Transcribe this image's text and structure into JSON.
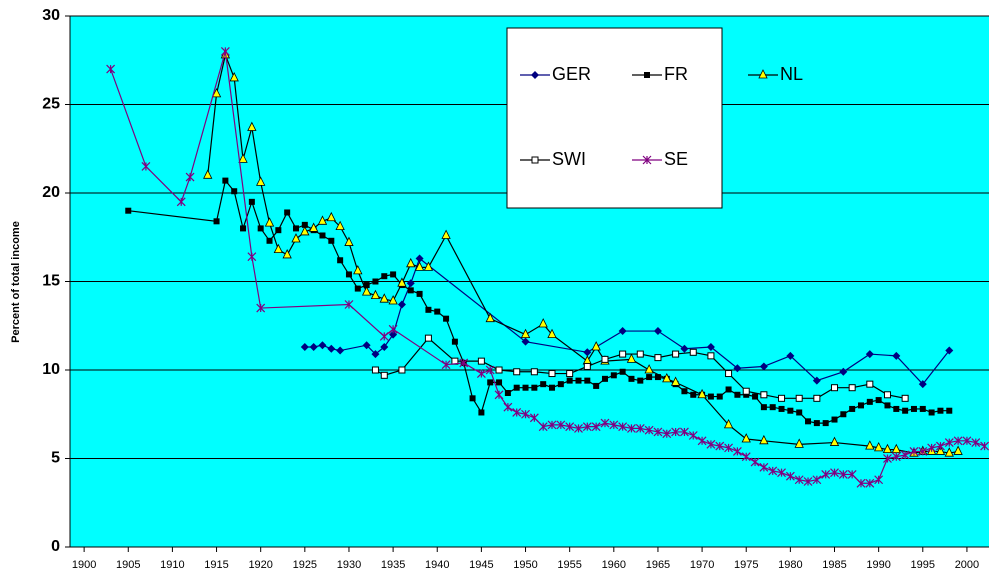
{
  "chart_data": {
    "type": "line",
    "y_label": "Percent of total income",
    "xlim": [
      1898.4,
      2002.5
    ],
    "ylim": [
      0,
      30
    ],
    "xticks": [
      1900,
      1905,
      1910,
      1915,
      1920,
      1925,
      1930,
      1935,
      1940,
      1945,
      1950,
      1955,
      1960,
      1965,
      1970,
      1975,
      1980,
      1985,
      1990,
      1995,
      2000
    ],
    "yticks": [
      0,
      5,
      10,
      15,
      20,
      25,
      30
    ],
    "grid": true,
    "background": "#00ffff",
    "series": [
      {
        "name": "GER",
        "color": "#000080",
        "marker": "diamond",
        "x": [
          1925,
          1926,
          1927,
          1928,
          1929,
          1932,
          1933,
          1934,
          1935,
          1936,
          1937,
          1938,
          1950,
          1957,
          1961,
          1965,
          1968,
          1971,
          1974,
          1977,
          1980,
          1983,
          1986,
          1989,
          1992,
          1995,
          1998
        ],
        "values": [
          11.3,
          11.3,
          11.4,
          11.2,
          11.1,
          11.4,
          10.9,
          11.3,
          12.0,
          13.7,
          14.9,
          16.3,
          11.6,
          11.0,
          12.2,
          12.2,
          11.2,
          11.3,
          10.1,
          10.2,
          10.8,
          9.4,
          9.9,
          10.9,
          10.8,
          9.2,
          11.1
        ]
      },
      {
        "name": "FR",
        "color": "#000000",
        "marker": "square",
        "x": [
          1905,
          1915,
          1916,
          1917,
          1918,
          1919,
          1920,
          1921,
          1922,
          1923,
          1924,
          1925,
          1926,
          1927,
          1928,
          1929,
          1930,
          1931,
          1932,
          1933,
          1934,
          1935,
          1936,
          1937,
          1938,
          1939,
          1940,
          1941,
          1942,
          1943,
          1944,
          1945,
          1946,
          1947,
          1948,
          1949,
          1950,
          1951,
          1952,
          1953,
          1954,
          1955,
          1956,
          1957,
          1958,
          1959,
          1960,
          1961,
          1962,
          1963,
          1964,
          1965,
          1966,
          1967,
          1968,
          1969,
          1970,
          1971,
          1972,
          1973,
          1974,
          1975,
          1976,
          1977,
          1978,
          1979,
          1980,
          1981,
          1982,
          1983,
          1984,
          1985,
          1986,
          1987,
          1988,
          1989,
          1990,
          1991,
          1992,
          1993,
          1994,
          1995,
          1996,
          1997,
          1998
        ],
        "values": [
          19.0,
          18.4,
          20.7,
          20.1,
          18.0,
          19.5,
          18.0,
          17.3,
          17.9,
          18.9,
          18.0,
          18.2,
          17.9,
          17.6,
          17.3,
          16.2,
          15.4,
          14.6,
          14.8,
          15.0,
          15.3,
          15.4,
          14.8,
          14.5,
          14.3,
          13.4,
          13.3,
          12.9,
          11.6,
          10.4,
          8.4,
          7.6,
          9.3,
          9.3,
          8.7,
          9.0,
          9.0,
          9.0,
          9.2,
          9.0,
          9.2,
          9.4,
          9.4,
          9.4,
          9.1,
          9.5,
          9.7,
          9.9,
          9.5,
          9.4,
          9.6,
          9.6,
          9.5,
          9.2,
          8.8,
          8.6,
          8.6,
          8.5,
          8.5,
          8.9,
          8.6,
          8.6,
          8.5,
          7.9,
          7.9,
          7.8,
          7.7,
          7.6,
          7.1,
          7.0,
          7.0,
          7.2,
          7.5,
          7.8,
          8.0,
          8.2,
          8.3,
          8.0,
          7.8,
          7.7,
          7.8,
          7.8,
          7.6,
          7.7,
          7.7
        ]
      },
      {
        "name": "NL",
        "color": "#ffff00",
        "marker": "triangle",
        "x": [
          1914,
          1915,
          1916,
          1917,
          1918,
          1919,
          1920,
          1921,
          1922,
          1923,
          1924,
          1925,
          1926,
          1927,
          1928,
          1929,
          1930,
          1931,
          1932,
          1933,
          1934,
          1935,
          1936,
          1937,
          1938,
          1939,
          1941,
          1946,
          1950,
          1952,
          1953,
          1957,
          1958,
          1959,
          1962,
          1964,
          1966,
          1967,
          1970,
          1973,
          1975,
          1977,
          1981,
          1985,
          1989,
          1990,
          1991,
          1992,
          1994,
          1995,
          1996,
          1997,
          1998,
          1999
        ],
        "values": [
          21.0,
          25.6,
          27.8,
          26.5,
          21.9,
          23.7,
          20.6,
          18.3,
          16.8,
          16.5,
          17.4,
          17.8,
          18.0,
          18.4,
          18.6,
          18.1,
          17.2,
          15.6,
          14.4,
          14.2,
          14.0,
          13.9,
          14.9,
          16.0,
          15.8,
          15.8,
          17.6,
          12.9,
          12.0,
          12.6,
          12.0,
          10.5,
          11.3,
          10.5,
          10.6,
          10.0,
          9.5,
          9.3,
          8.6,
          6.9,
          6.1,
          6.0,
          5.8,
          5.9,
          5.7,
          5.6,
          5.5,
          5.5,
          5.3,
          5.4,
          5.4,
          5.4,
          5.3,
          5.4
        ]
      },
      {
        "name": "SWI",
        "color": "#000000",
        "marker": "open-square",
        "x": [
          1933,
          1934,
          1936,
          1939,
          1942,
          1945,
          1947,
          1949,
          1951,
          1953,
          1955,
          1957,
          1959,
          1961,
          1963,
          1965,
          1967,
          1969,
          1971,
          1973,
          1975,
          1977,
          1979,
          1981,
          1983,
          1985,
          1987,
          1989,
          1991,
          1993
        ],
        "values": [
          10.0,
          9.7,
          10.0,
          11.8,
          10.5,
          10.5,
          10.0,
          9.9,
          9.9,
          9.8,
          9.8,
          10.2,
          10.6,
          10.9,
          10.9,
          10.7,
          10.9,
          11.0,
          10.8,
          9.8,
          8.8,
          8.6,
          8.4,
          8.4,
          8.4,
          9.0,
          9.0,
          9.2,
          8.6,
          8.4
        ]
      },
      {
        "name": "SE",
        "color": "#800080",
        "marker": "star",
        "x": [
          1903,
          1907,
          1911,
          1912,
          1916,
          1919,
          1920,
          1930,
          1934,
          1935,
          1941,
          1943,
          1945,
          1946,
          1947,
          1948,
          1949,
          1950,
          1951,
          1952,
          1953,
          1954,
          1955,
          1956,
          1957,
          1958,
          1959,
          1960,
          1961,
          1962,
          1963,
          1964,
          1965,
          1966,
          1967,
          1968,
          1969,
          1970,
          1971,
          1972,
          1973,
          1974,
          1975,
          1976,
          1977,
          1978,
          1979,
          1980,
          1981,
          1982,
          1983,
          1984,
          1985,
          1986,
          1987,
          1988,
          1989,
          1990,
          1991,
          1992,
          1993,
          1994,
          1995,
          1996,
          1997,
          1998,
          1999,
          2000,
          2001,
          2002
        ],
        "values": [
          27.0,
          21.5,
          19.5,
          20.9,
          28.0,
          16.4,
          13.5,
          13.7,
          11.9,
          12.3,
          10.3,
          10.4,
          9.8,
          10.0,
          8.6,
          7.9,
          7.6,
          7.5,
          7.3,
          6.8,
          6.9,
          6.9,
          6.8,
          6.7,
          6.8,
          6.8,
          7.0,
          6.9,
          6.8,
          6.7,
          6.7,
          6.6,
          6.5,
          6.4,
          6.5,
          6.5,
          6.3,
          6.0,
          5.8,
          5.7,
          5.6,
          5.4,
          5.1,
          4.8,
          4.5,
          4.3,
          4.2,
          4.0,
          3.8,
          3.7,
          3.8,
          4.1,
          4.2,
          4.1,
          4.1,
          3.6,
          3.6,
          3.8,
          5.0,
          5.1,
          5.2,
          5.4,
          5.4,
          5.6,
          5.7,
          5.9,
          6.0,
          6.0,
          5.9,
          5.7
        ]
      }
    ]
  }
}
